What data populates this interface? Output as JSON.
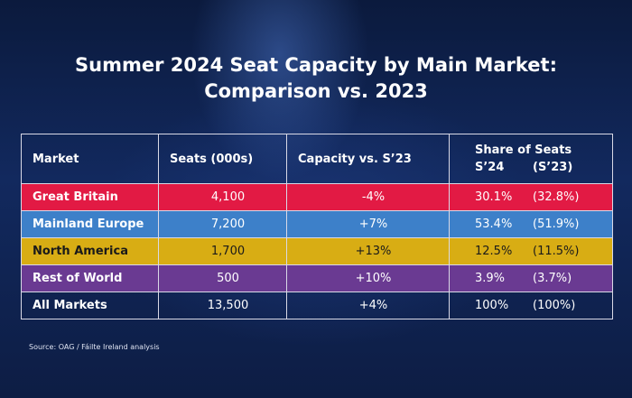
{
  "title": {
    "line1": "Summer 2024 Seat Capacity by Main Market:",
    "line2": "Comparison vs. 2023"
  },
  "table": {
    "headers": {
      "market": "Market",
      "seats": "Seats (000s)",
      "capacity": "Capacity vs. S’23",
      "share": "Share of Seats",
      "share_s24": "S’24",
      "share_s23": "(S’23)"
    },
    "rows": [
      {
        "market": "Great Britain",
        "seats": "4,100",
        "capacity": "-4%",
        "share24": "30.1%",
        "share23": "(32.8%)",
        "color": "#e21a44"
      },
      {
        "market": "Mainland Europe",
        "seats": "7,200",
        "capacity": "+7%",
        "share24": "53.4%",
        "share23": "(51.9%)",
        "color": "#3d80c9"
      },
      {
        "market": "North America",
        "seats": "1,700",
        "capacity": "+13%",
        "share24": "12.5%",
        "share23": "(11.5%)",
        "color": "#d8ad14"
      },
      {
        "market": "Rest of World",
        "seats": "500",
        "capacity": "+10%",
        "share24": "3.9%",
        "share23": "(3.7%)",
        "color": "#6a3a92"
      },
      {
        "market": "All Markets",
        "seats": "13,500",
        "capacity": "+4%",
        "share24": "100%",
        "share23": "(100%)",
        "color": ""
      }
    ]
  },
  "source": "Source: OAG / Fáilte Ireland analysis"
}
